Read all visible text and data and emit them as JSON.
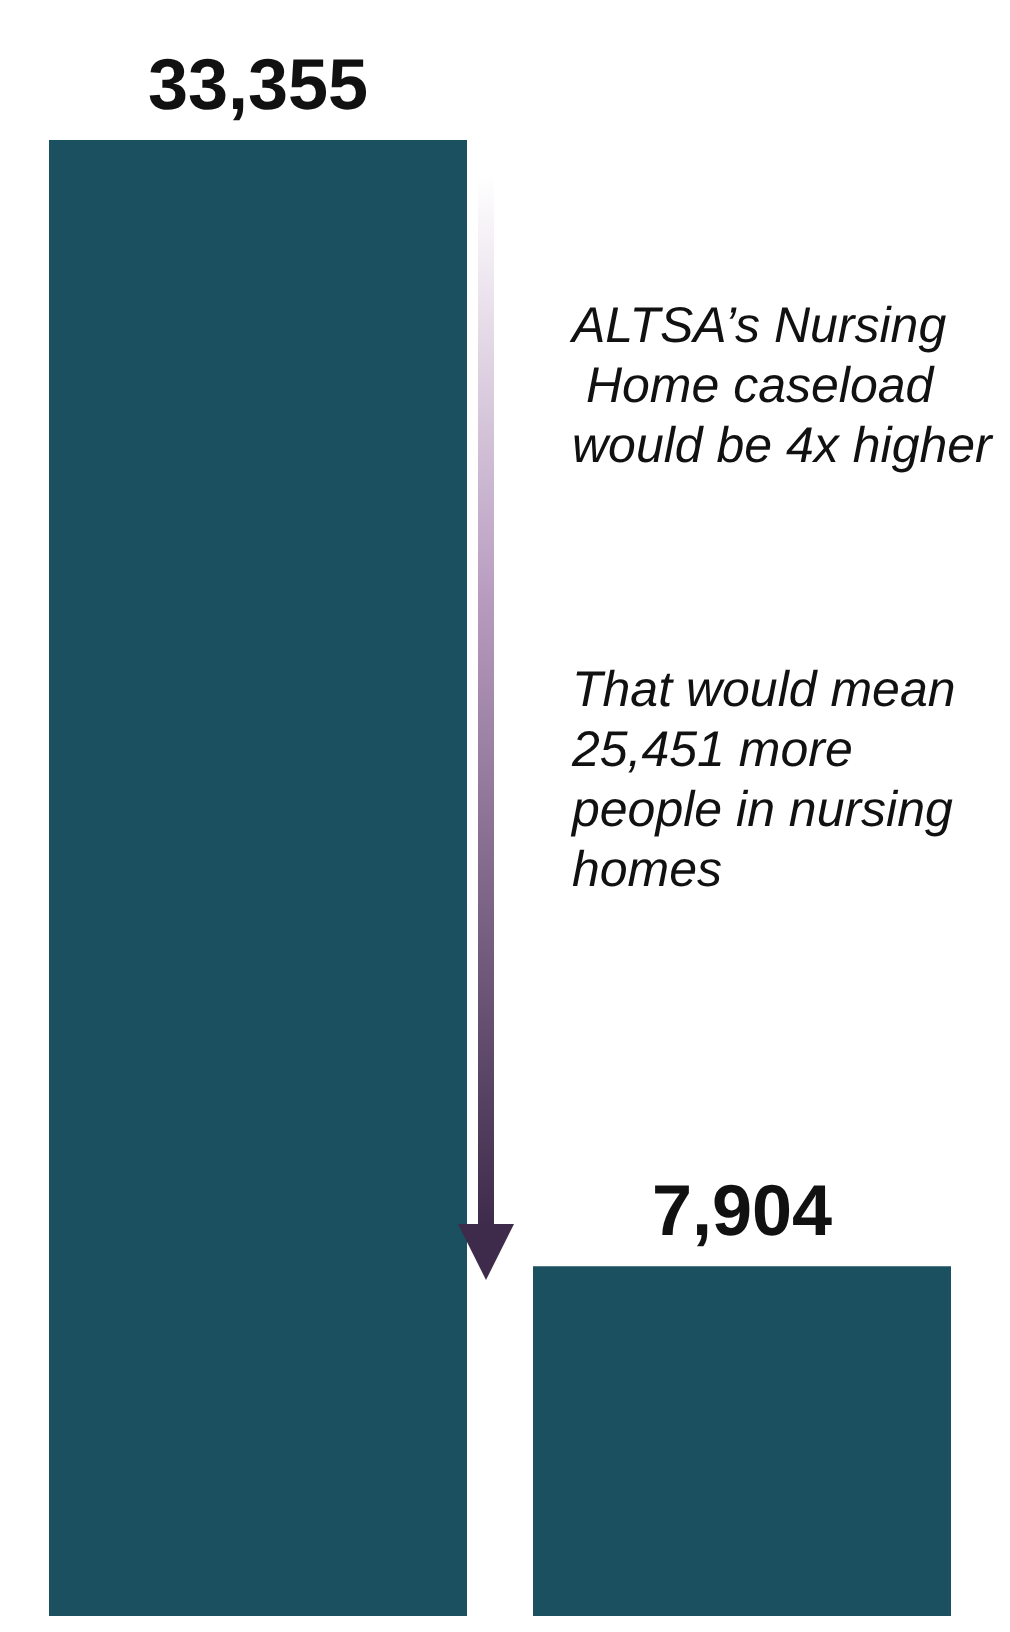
{
  "chart_data": {
    "type": "bar",
    "categories": [
      null,
      null
    ],
    "values": [
      33355,
      7904
    ],
    "color": "#1a5060",
    "data_labels": true,
    "value_labels": [
      "33,355",
      "7,904"
    ],
    "annotations": [
      "ALTSA’s Nursing Home caseload would be 4x higher",
      "That would mean 25,451 more people in nursing homes"
    ]
  }
}
